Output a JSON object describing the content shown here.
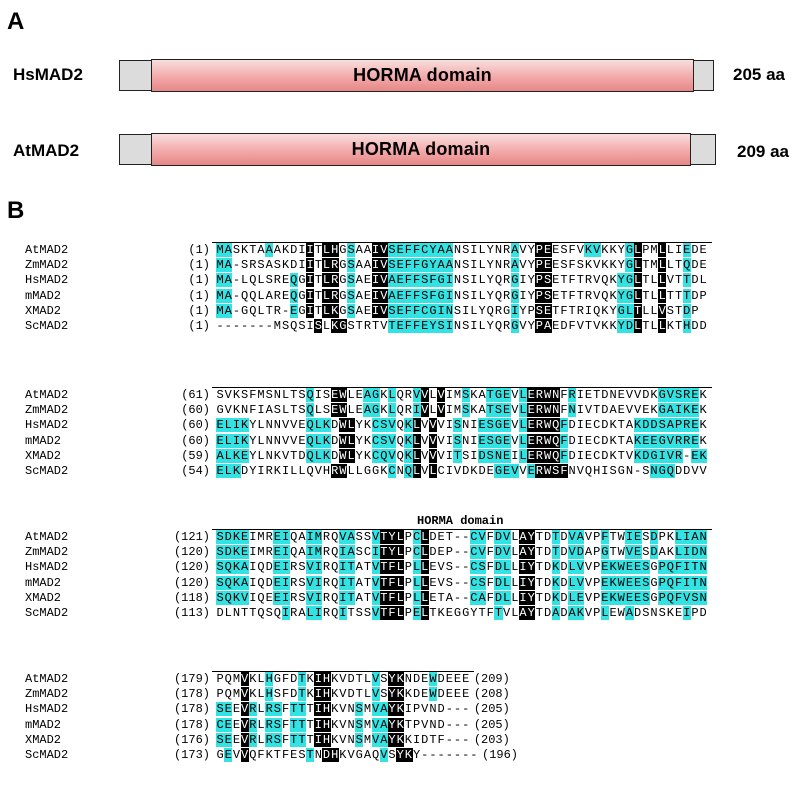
{
  "panel_a": {
    "label": "A",
    "proteins": [
      {
        "name": "HsMAD2",
        "domain_label": "HORMA domain",
        "length": "205 aa"
      },
      {
        "name": "AtMAD2",
        "domain_label": "HORMA domain",
        "length": "209 aa"
      }
    ]
  },
  "panel_b": {
    "label": "B",
    "region_label": "HORMA domain",
    "colors": {
      "identical": "#000000",
      "similar": "#33e3e3"
    },
    "blocks": [
      {
        "rows": [
          {
            "name": "AtMAD2",
            "pos": "(1)",
            "seq": "MASKTAAAKDIITLHGSAAIVSEFFCYAANSILYNRAVYPEESFVKVKKYGLPMLLIEDE",
            "mask": "cc....c....k.kk.c..kkcccccccc.......c..kk....cc...ck..k..c..."
          },
          {
            "name": "ZmMAD2",
            "pos": "(1)",
            "seq": "MA-SRSASKDIITLRGSAAIVSEFFGYAANSILYNRAVYPEESFSKVKKYGLTMLLTQDE",
            "mask": "cc.........k.kk.c..kkcccccccc.......c..kk.........ck..k..c..."
          },
          {
            "name": "HsMAD2",
            "pos": "(1)",
            "seq": "MA-LQLSREQGITLRGSAEIVAEFFSFGINSILYQRGIYPSETFTRVQKYGLTLLVTTDL",
            "mask": "cc.......c.k.kk.c..kkcccccccc.......c..kk........cck..k..c..."
          },
          {
            "name": "mMAD2",
            "pos": "(1)",
            "seq": "MA-QQLAREQGITLRGSAEIVAEFFSFGINSILYQRGIYPSETFTRVQKYGLTLLTTTDP",
            "mask": "cc.......c.k.kk.c..kkcccccccc.......c..kk........cck..k..c..."
          },
          {
            "name": "XMAD2",
            "pos": "(1)",
            "seq": "MA-GQLTR-EGITLKGSAEIVSEFFCGINSILYQRGIYPSETFTRIQKYGLTLLVSTDP",
            "mask": "cc.......c.k.kk.c..kkcccccccc.......c..kk........cck..k..c.."
          },
          {
            "name": "ScMAD2",
            "pos": "(1)",
            "seq": "-------MSQSISLKGSTRTVTEFFEYSINSILYQRGVYPAEDFVTVKKYDLTLLKTHDD",
            "mask": "............k.kk.....cccccccc.......c..kk........cck..k..c..."
          }
        ]
      },
      {
        "rows": [
          {
            "name": "AtMAD2",
            "pos": "(61)",
            "seq": "SVKSFMSNLTSQISEWLEAGKLQRVVLVIMSKATGEVLERWNFRIETDNEVVDKGVSREK",
            "mask": "...........c..kk..cc.c..ck.k..c..ccc.ckkkk.c..........ccccc"
          },
          {
            "name": "ZmMAD2",
            "pos": "(60)",
            "seq": "GVKNFIASLTSQLSEWLEAGKLQRIVLVIMSKATSEVLERWNFNIVTDAEVVEKGAIKEK",
            "mask": "...........c..kk..cc.c..ck.k..c..ccc.ckkkk.c..........ccccc"
          },
          {
            "name": "HsMAD2",
            "pos": "(60)",
            "seq": "ELIKYLNNVVEQLKDWLYKCSVQKLVVVISNIESGEVLERWQFDIECDKTAKDDSAPREK",
            "mask": "cccc.......ccc.kk..ccc.ck.k..c..cccc.ckkkkc........cccccccc"
          },
          {
            "name": "mMAD2",
            "pos": "(60)",
            "seq": "ELIKYLNNVVEQLKDWLYKCSVQKLVVVISNIESGEVLERWQFDIECDKTAKEEGVRREK",
            "mask": "cccc.......ccc.kk..ccc.ck.k..c..cccc.ckkkkc........cccccccc"
          },
          {
            "name": "XMAD2",
            "pos": "(59)",
            "seq": "ALKEYLNKVTDQLKDWLYKCQVQKLVVVITSIDSNEILERWQFDIECDKTVKDGIVR-EK",
            "mask": "cccc.......ccc.kk..ccc.ck.k..c..cccc.ckkkkc........cccccc.cc"
          },
          {
            "name": "ScMAD2",
            "pos": "(54)",
            "seq": "ELKDYIRKILLQVHRWLLGGKCNQLVLCIVDKDEGEVVERWSFNVQHISGN-SNGQDDVV",
            "mask": "ccc...........kk.....c.ck.k.......ccc.ckkkk..........ccc...."
          }
        ]
      },
      {
        "rows": [
          {
            "name": "AtMAD2",
            "pos": "(121)",
            "seq": "SDKEIMREIQAIMRQVASSVTYLPCLDET--CVFDVLAYTDTDVAVPFTWIESDPKLIAN",
            "mask": "cccc...cc..cc..cc..ckkk.ck.....cc.cc.kk..c.cc..c..cc.c..cccc"
          },
          {
            "name": "ZmMAD2",
            "pos": "(120)",
            "seq": "SDKEIMREIQAIMRQIASCITYLPCLDEP--CVFDVLAYTDTDVDAPGTWVESDAKLIDN",
            "mask": "cccc...cc..cc..cc..ckkk.ck.....cc.cc.kk..c.cc..c..cc.c..cccc"
          },
          {
            "name": "HsMAD2",
            "pos": "(120)",
            "seq": "SQKAIQDEIRSVIRQITATVTFLPLLEVS--CSFDLLIYTDKDLVVPEKWEESGPQFITN",
            "mask": "cccc...cc..cc..cc..ckkk.ck.....cc.cc.kk..c.cc..cccccc.cccccc"
          },
          {
            "name": "mMAD2",
            "pos": "(120)",
            "seq": "SQKAIQDEIRSVIRQITATVTFLPLLEVS--CSFDLLIYTDKDLVVPEKWEESGPQFITN",
            "mask": "cccc...cc..cc..cc..ckkk.ck.....cc.cc.kk..c.cc..cccccc.cccccc"
          },
          {
            "name": "XMAD2",
            "pos": "(118)",
            "seq": "SQKVIQEEIRSVIRQITATVTFLPLLETA--CAFDLLIYTDKDLEVPEKWEESGPQFVSN",
            "mask": "cccc...cc..cc..cc..ckkk.ck.....cc.cc.kk..c.cc..cccccc.cccccc"
          },
          {
            "name": "ScMAD2",
            "pos": "(113)",
            "seq": "DLNTTQSQIRALIRQITSSVTFLPELTKEGGYTFTVLAYTDADAKVPLEWADSNSKEIPD",
            "mask": "........c..cc..c...ckkk.ck........c..kk..c.cc..c..c......c.."
          }
        ]
      },
      {
        "rows": [
          {
            "name": "AtMAD2",
            "pos": "(179)",
            "seq": "PQMVKLHGFDTKIHKVDTLVSYKNDEWDEEE",
            "end": "(209)",
            "mask": "...k..c...c.kk.....c.kk...c...."
          },
          {
            "name": "ZmMAD2",
            "pos": "(178)",
            "seq": "PQMVKLHSFDTKIHKVDTLVSYKKDEWDEEE",
            "end": "(208)",
            "mask": "...k..c...c.kk.....c.kk...c...."
          },
          {
            "name": "HsMAD2",
            "pos": "(178)",
            "seq": "SEEVRLRSFTTTIHKVNSMVAYKIPVND---",
            "end": "(205)",
            "mask": "cc.kc.cc.cc.kk...c.cckk........"
          },
          {
            "name": "mMAD2",
            "pos": "(178)",
            "seq": "CEEVRLRSFTTTIHKVNSMVAYKTPVND---",
            "end": "(205)",
            "mask": "cc.kc.cc.cc.kk...c.cckk........"
          },
          {
            "name": "XMAD2",
            "pos": "(176)",
            "seq": "SEEVRLRSFTTTIHKVNSMVAYKKIDTF---",
            "end": "(203)",
            "mask": "cc.kc.cc.cc.kk...c.cckk........"
          },
          {
            "name": "ScMAD2",
            "pos": "(173)",
            "seq": "GEVVQFKTFESTNDHKVGAQVSYKY-------",
            "end": "(196)",
            "mask": ".c.k.......c.kk.....c.kk........"
          }
        ]
      }
    ]
  }
}
